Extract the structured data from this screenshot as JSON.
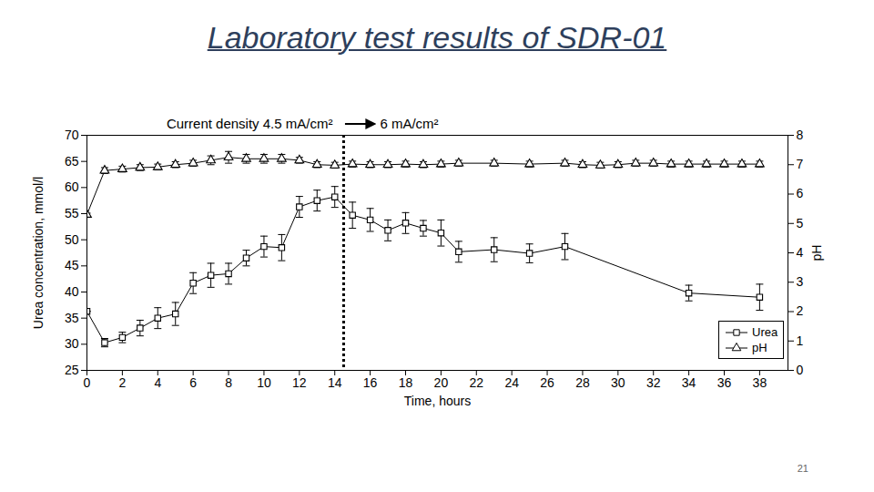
{
  "chart_data": {
    "type": "line",
    "title": "Laboratory test results of SDR-01",
    "x_label": "Time, hours",
    "y_label": "Urea concentration, mmol/l",
    "y2_label": "pH",
    "xlim": [
      0,
      39.6
    ],
    "xticks": [
      0,
      2,
      4,
      6,
      8,
      10,
      12,
      14,
      16,
      18,
      20,
      22,
      24,
      26,
      28,
      30,
      32,
      34,
      36,
      38
    ],
    "ylim": [
      25,
      70
    ],
    "yticks": [
      25,
      30,
      35,
      40,
      45,
      50,
      55,
      60,
      65,
      70
    ],
    "y2lim": [
      0,
      8
    ],
    "y2ticks": [
      0,
      1,
      2,
      3,
      4,
      5,
      6,
      7,
      8
    ],
    "legend": "bottom-right",
    "annotations": [
      "Current density 4.5 mA/cm²",
      "6 mA/cm²"
    ],
    "switch_time": 14.5,
    "series": [
      {
        "name": "Urea",
        "color": "#000000",
        "marker": "square",
        "line_style": "solid",
        "x": [
          0,
          1,
          2,
          3,
          4,
          5,
          6,
          7,
          8,
          9,
          10,
          11,
          12,
          13,
          14,
          15,
          16,
          17,
          18,
          19,
          20,
          21,
          23,
          25,
          27,
          34,
          38
        ],
        "values": [
          36.3,
          30.3,
          31.3,
          33.1,
          35.0,
          35.8,
          41.7,
          43.2,
          43.5,
          46.5,
          48.7,
          48.5,
          56.3,
          57.5,
          58.2,
          54.7,
          53.8,
          51.8,
          53.2,
          52.2,
          51.3,
          47.7,
          48.1,
          47.4,
          48.7,
          39.8,
          39.0
        ],
        "errors": [
          0,
          0.8,
          1.0,
          1.5,
          2.0,
          2.2,
          2.0,
          2.3,
          2.0,
          1.5,
          2.0,
          2.5,
          2.0,
          2.0,
          2.0,
          2.5,
          2.2,
          2.0,
          2.0,
          1.5,
          2.5,
          2.0,
          2.3,
          1.8,
          2.5,
          1.5,
          2.5
        ]
      },
      {
        "name": "pH",
        "color": "#000000",
        "marker": "triangle",
        "line_style": "solid",
        "axis": "y2",
        "x": [
          0,
          1,
          2,
          3,
          4,
          5,
          6,
          7,
          8,
          9,
          10,
          11,
          12,
          13,
          14,
          15,
          16,
          17,
          18,
          19,
          20,
          21,
          23,
          25,
          27,
          28,
          29,
          30,
          31,
          32,
          33,
          34,
          35,
          36,
          37,
          38
        ],
        "values": [
          5.3,
          6.8,
          6.85,
          6.9,
          6.92,
          7.0,
          7.05,
          7.15,
          7.25,
          7.2,
          7.2,
          7.2,
          7.15,
          7.0,
          6.98,
          7.02,
          7.0,
          7.0,
          7.02,
          7.0,
          7.02,
          7.05,
          7.05,
          7.02,
          7.05,
          7.0,
          6.98,
          7.0,
          7.05,
          7.05,
          7.02,
          7.02,
          7.02,
          7.02,
          7.02,
          7.02
        ],
        "errors": [
          0.05,
          0.1,
          0.1,
          0.1,
          0.1,
          0.1,
          0.1,
          0.15,
          0.2,
          0.15,
          0.15,
          0.15,
          0.1,
          0.1,
          0.1,
          0.1,
          0.1,
          0.1,
          0.1,
          0.1,
          0.1,
          0.1,
          0.1,
          0.1,
          0.1,
          0.1,
          0.1,
          0.1,
          0.1,
          0.1,
          0.1,
          0.1,
          0.1,
          0.1,
          0.1,
          0.1
        ]
      }
    ]
  },
  "slide_number": 21
}
